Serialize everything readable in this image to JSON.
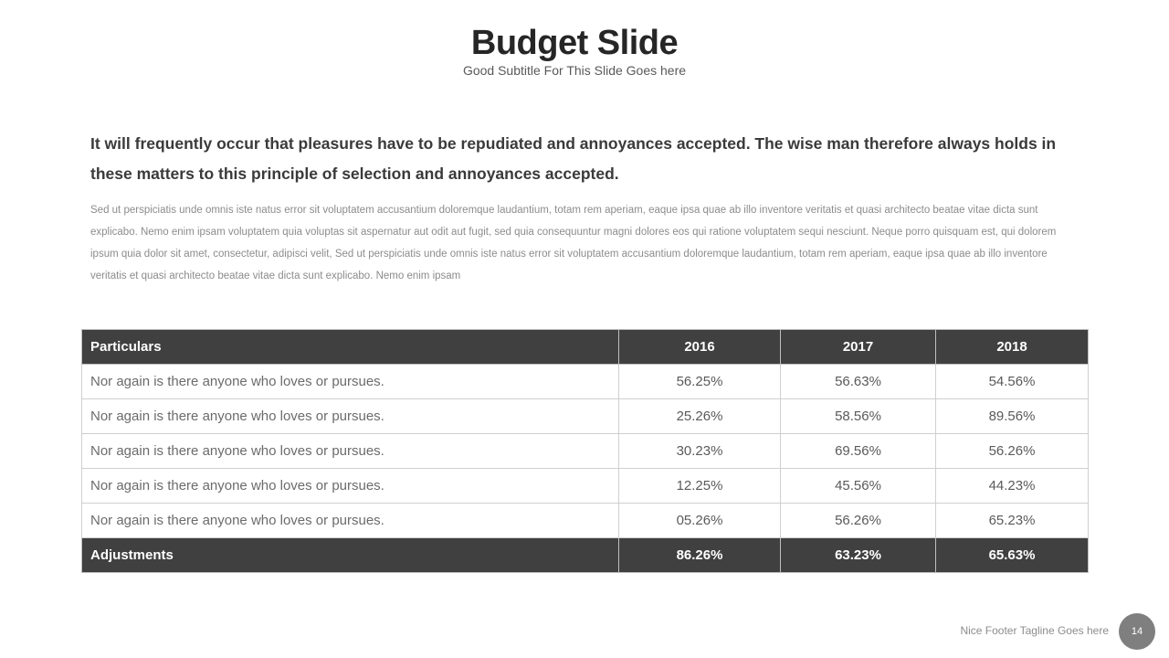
{
  "slide": {
    "title": "Budget Slide",
    "subtitle": "Good Subtitle For This Slide Goes here",
    "lead": "It will frequently occur that pleasures have to be repudiated and annoyances accepted. The wise man therefore always holds in these matters to this principle of selection and annoyances accepted.",
    "body": "Sed ut perspiciatis unde omnis iste natus error sit voluptatem accusantium doloremque laudantium, totam rem aperiam, eaque ipsa quae ab illo inventore veritatis et quasi architecto beatae vitae dicta sunt explicabo. Nemo enim ipsam voluptatem quia voluptas sit aspernatur aut odit aut fugit, sed quia consequuntur magni dolores eos qui ratione voluptatem sequi nesciunt. Neque porro quisquam est, qui dolorem ipsum quia dolor sit amet, consectetur, adipisci velit, Sed ut perspiciatis unde omnis iste natus error sit voluptatem accusantium doloremque laudantium, totam rem aperiam, eaque ipsa quae ab illo inventore veritatis et quasi architecto beatae vitae dicta sunt explicabo. Nemo enim ipsam"
  },
  "table": {
    "headers": [
      "Particulars",
      "2016",
      "2017",
      "2018"
    ],
    "rows": [
      [
        "Nor again is there anyone who loves or pursues.",
        "56.25%",
        "56.63%",
        "54.56%"
      ],
      [
        "Nor again is there anyone who loves or pursues.",
        "25.26%",
        "58.56%",
        "89.56%"
      ],
      [
        "Nor again is there anyone who loves or pursues.",
        "30.23%",
        "69.56%",
        "56.26%"
      ],
      [
        "Nor again is there anyone who loves or pursues.",
        "12.25%",
        "45.56%",
        "44.23%"
      ],
      [
        "Nor again is there anyone who loves or pursues.",
        "05.26%",
        "56.26%",
        "65.23%"
      ]
    ],
    "footer": [
      "Adjustments",
      "86.26%",
      "63.23%",
      "65.63%"
    ]
  },
  "footer": {
    "tagline": "Nice Footer  Tagline Goes here",
    "page_number": "14"
  }
}
